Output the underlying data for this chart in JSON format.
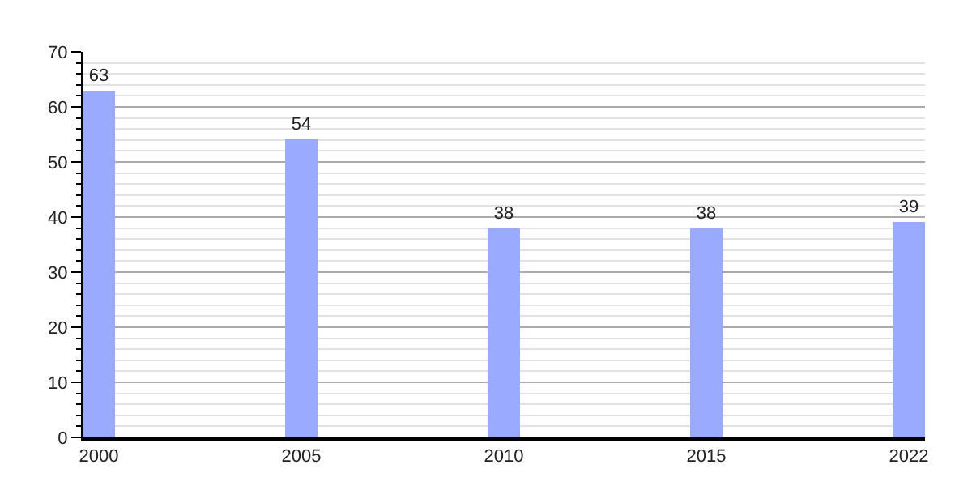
{
  "chart_data": {
    "type": "bar",
    "categories": [
      "2000",
      "2005",
      "2010",
      "2015",
      "2022"
    ],
    "values": [
      63,
      54,
      38,
      38,
      39
    ],
    "color": "#99aaff",
    "ylim": [
      0,
      70
    ],
    "yticks": [
      0,
      10,
      20,
      30,
      40,
      50,
      60,
      70
    ],
    "grid": "y",
    "data_labels": true
  }
}
